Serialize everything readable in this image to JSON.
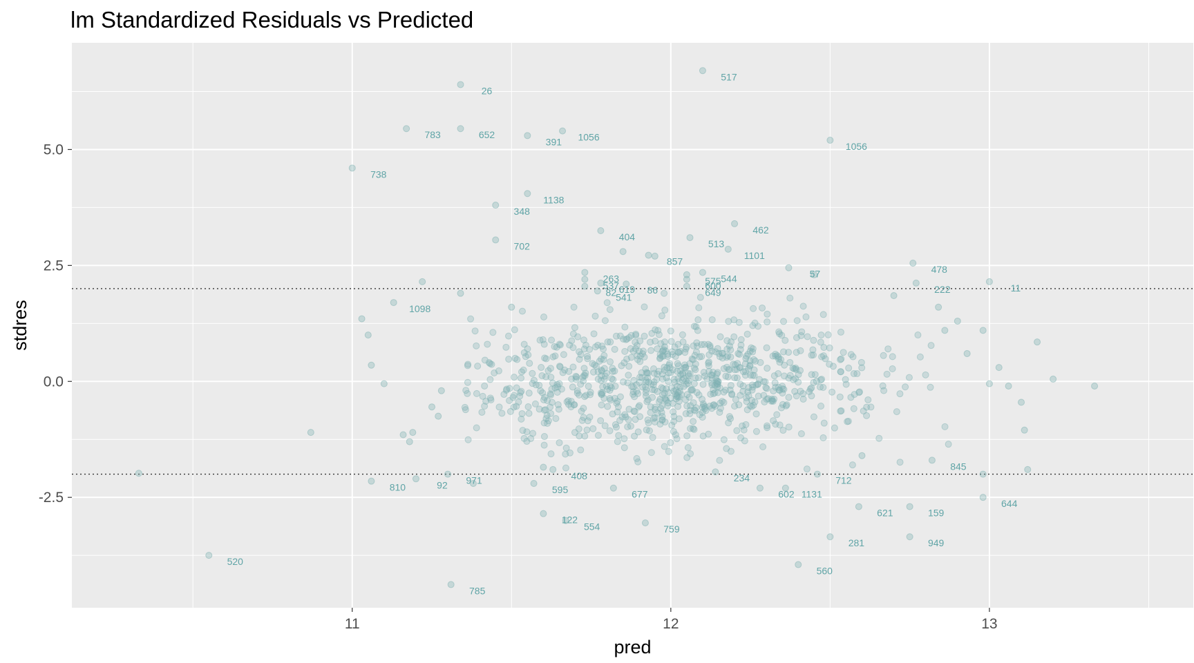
{
  "chart_data": {
    "type": "scatter",
    "title": "lm Standardized Residuals vs Predicted",
    "xlabel": "pred",
    "ylabel": "stdres",
    "xlim": [
      10.12,
      13.64
    ],
    "ylim": [
      -4.88,
      7.3
    ],
    "x_ticks": [
      11,
      12,
      13
    ],
    "y_ticks": [
      -2.5,
      0.0,
      2.5,
      5.0
    ],
    "y_tick_labels": [
      "-2.5",
      "0.0",
      "2.5",
      "5.0"
    ],
    "reference_lines": [
      2,
      -2
    ],
    "grid": true,
    "point_color": "#7fb1b2",
    "label_color": "#5fa4a6",
    "labeled_points": [
      {
        "x": 12.1,
        "y": 6.7,
        "label": "517"
      },
      {
        "x": 11.34,
        "y": 6.4,
        "label": "26"
      },
      {
        "x": 11.17,
        "y": 5.45,
        "label": "783"
      },
      {
        "x": 11.34,
        "y": 5.45,
        "label": "652"
      },
      {
        "x": 11.55,
        "y": 5.3,
        "label": "391"
      },
      {
        "x": 11.66,
        "y": 5.4,
        "label": "1056"
      },
      {
        "x": 12.5,
        "y": 5.2,
        "label": "1056"
      },
      {
        "x": 11.0,
        "y": 4.6,
        "label": "738"
      },
      {
        "x": 11.55,
        "y": 4.05,
        "label": "1138"
      },
      {
        "x": 11.45,
        "y": 3.8,
        "label": "348"
      },
      {
        "x": 11.78,
        "y": 3.25,
        "label": "404"
      },
      {
        "x": 11.45,
        "y": 3.05,
        "label": "702"
      },
      {
        "x": 12.2,
        "y": 3.4,
        "label": "462"
      },
      {
        "x": 12.06,
        "y": 3.1,
        "label": "513"
      },
      {
        "x": 11.93,
        "y": 2.72,
        "label": "857"
      },
      {
        "x": 12.18,
        "y": 2.85,
        "label": "1101"
      },
      {
        "x": 12.37,
        "y": 2.45,
        "label": "57"
      },
      {
        "x": 11.73,
        "y": 2.35,
        "label": "263"
      },
      {
        "x": 12.1,
        "y": 2.35,
        "label": "544"
      },
      {
        "x": 11.73,
        "y": 2.2,
        "label": "537"
      },
      {
        "x": 12.05,
        "y": 2.3,
        "label": "575"
      },
      {
        "x": 12.76,
        "y": 2.55,
        "label": "478"
      },
      {
        "x": 11.78,
        "y": 2.12,
        "label": "619"
      },
      {
        "x": 12.05,
        "y": 2.2,
        "label": "600"
      },
      {
        "x": 11.73,
        "y": 2.05,
        "label": "82"
      },
      {
        "x": 12.05,
        "y": 2.05,
        "label": "649"
      },
      {
        "x": 11.77,
        "y": 1.95,
        "label": "541"
      },
      {
        "x": 11.86,
        "y": 2.1,
        "label": "86"
      },
      {
        "x": 13.0,
        "y": 2.15,
        "label": "11"
      },
      {
        "x": 12.77,
        "y": 2.12,
        "label": "222"
      },
      {
        "x": 11.13,
        "y": 1.7,
        "label": "1098"
      },
      {
        "x": 12.46,
        "y": -2.0,
        "label": "712"
      },
      {
        "x": 12.82,
        "y": -1.7,
        "label": "845"
      },
      {
        "x": 11.2,
        "y": -2.1,
        "label": "92"
      },
      {
        "x": 11.63,
        "y": -1.9,
        "label": "408"
      },
      {
        "x": 11.3,
        "y": -2.0,
        "label": "971"
      },
      {
        "x": 11.57,
        "y": -2.2,
        "label": "595"
      },
      {
        "x": 11.06,
        "y": -2.15,
        "label": "810"
      },
      {
        "x": 12.14,
        "y": -1.95,
        "label": "234"
      },
      {
        "x": 11.82,
        "y": -2.3,
        "label": "677"
      },
      {
        "x": 12.36,
        "y": -2.3,
        "label": "1131"
      },
      {
        "x": 12.28,
        "y": -2.3,
        "label": "602"
      },
      {
        "x": 12.59,
        "y": -2.7,
        "label": "621"
      },
      {
        "x": 12.75,
        "y": -2.7,
        "label": "159"
      },
      {
        "x": 12.98,
        "y": -2.5,
        "label": "644"
      },
      {
        "x": 11.67,
        "y": -3.0,
        "label": "554"
      },
      {
        "x": 11.92,
        "y": -3.05,
        "label": "759"
      },
      {
        "x": 11.6,
        "y": -2.85,
        "label": "122"
      },
      {
        "x": 12.5,
        "y": -3.35,
        "label": "281"
      },
      {
        "x": 12.4,
        "y": -3.95,
        "label": "560"
      },
      {
        "x": 12.75,
        "y": -3.35,
        "label": "949"
      },
      {
        "x": 10.55,
        "y": -3.75,
        "label": "520"
      },
      {
        "x": 11.31,
        "y": -4.38,
        "label": "785"
      }
    ],
    "extra_points": [
      {
        "x": 10.33,
        "y": -1.98
      },
      {
        "x": 10.87,
        "y": -1.1
      },
      {
        "x": 11.03,
        "y": 1.35
      },
      {
        "x": 11.05,
        "y": 1.0
      },
      {
        "x": 11.06,
        "y": 0.35
      },
      {
        "x": 11.1,
        "y": -0.05
      },
      {
        "x": 11.16,
        "y": -1.15
      },
      {
        "x": 11.18,
        "y": -1.3
      },
      {
        "x": 11.19,
        "y": -1.1
      },
      {
        "x": 11.22,
        "y": 2.15
      },
      {
        "x": 11.25,
        "y": -0.55
      },
      {
        "x": 11.27,
        "y": -0.75
      },
      {
        "x": 11.28,
        "y": -0.2
      },
      {
        "x": 11.34,
        "y": 1.9
      },
      {
        "x": 11.5,
        "y": 1.6
      },
      {
        "x": 11.85,
        "y": 2.8
      },
      {
        "x": 11.95,
        "y": 2.7
      },
      {
        "x": 12.45,
        "y": 2.3
      },
      {
        "x": 12.7,
        "y": 1.85
      },
      {
        "x": 12.84,
        "y": 1.6
      },
      {
        "x": 12.86,
        "y": 1.1
      },
      {
        "x": 12.9,
        "y": 1.3
      },
      {
        "x": 12.93,
        "y": 0.6
      },
      {
        "x": 12.98,
        "y": 1.1
      },
      {
        "x": 13.0,
        "y": -0.05
      },
      {
        "x": 13.03,
        "y": 0.3
      },
      {
        "x": 13.06,
        "y": -0.1
      },
      {
        "x": 13.1,
        "y": -0.45
      },
      {
        "x": 13.11,
        "y": -1.05
      },
      {
        "x": 13.12,
        "y": -1.9
      },
      {
        "x": 13.15,
        "y": 0.85
      },
      {
        "x": 13.2,
        "y": 0.05
      },
      {
        "x": 13.33,
        "y": -0.1
      },
      {
        "x": 12.98,
        "y": -2.0
      },
      {
        "x": 12.6,
        "y": -1.6
      },
      {
        "x": 11.6,
        "y": -1.85
      },
      {
        "x": 11.38,
        "y": -2.2
      }
    ]
  }
}
